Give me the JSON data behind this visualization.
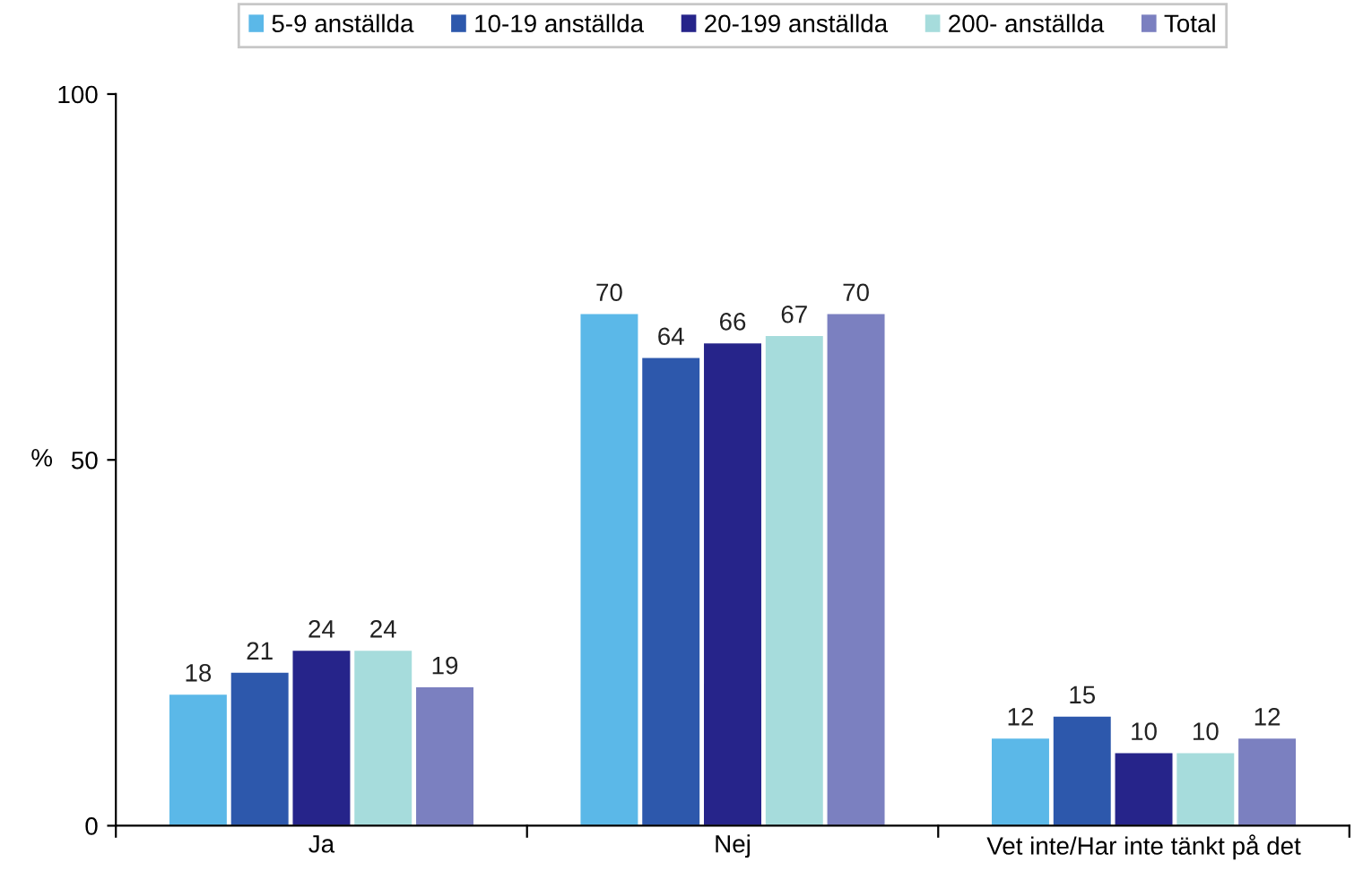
{
  "chart_data": {
    "type": "bar",
    "categories": [
      "Ja",
      "Nej",
      "Vet inte/Har inte tänkt på det"
    ],
    "series": [
      {
        "name": "5-9 anställda",
        "color": "#5bb8e8",
        "values": [
          18,
          70,
          12
        ]
      },
      {
        "name": "10-19 anställda",
        "color": "#2d58ac",
        "values": [
          21,
          64,
          15
        ]
      },
      {
        "name": "20-199 anställda",
        "color": "#26248a",
        "values": [
          24,
          66,
          10
        ]
      },
      {
        "name": "200- anställda",
        "color": "#a6dcdc",
        "values": [
          24,
          67,
          10
        ]
      },
      {
        "name": "Total",
        "color": "#7b80c0",
        "values": [
          19,
          70,
          12
        ]
      }
    ],
    "ylabel": "%",
    "ylim": [
      0,
      100
    ],
    "yticks": [
      0,
      50,
      100
    ],
    "grid": false,
    "legend": "top",
    "data_labels": true
  }
}
